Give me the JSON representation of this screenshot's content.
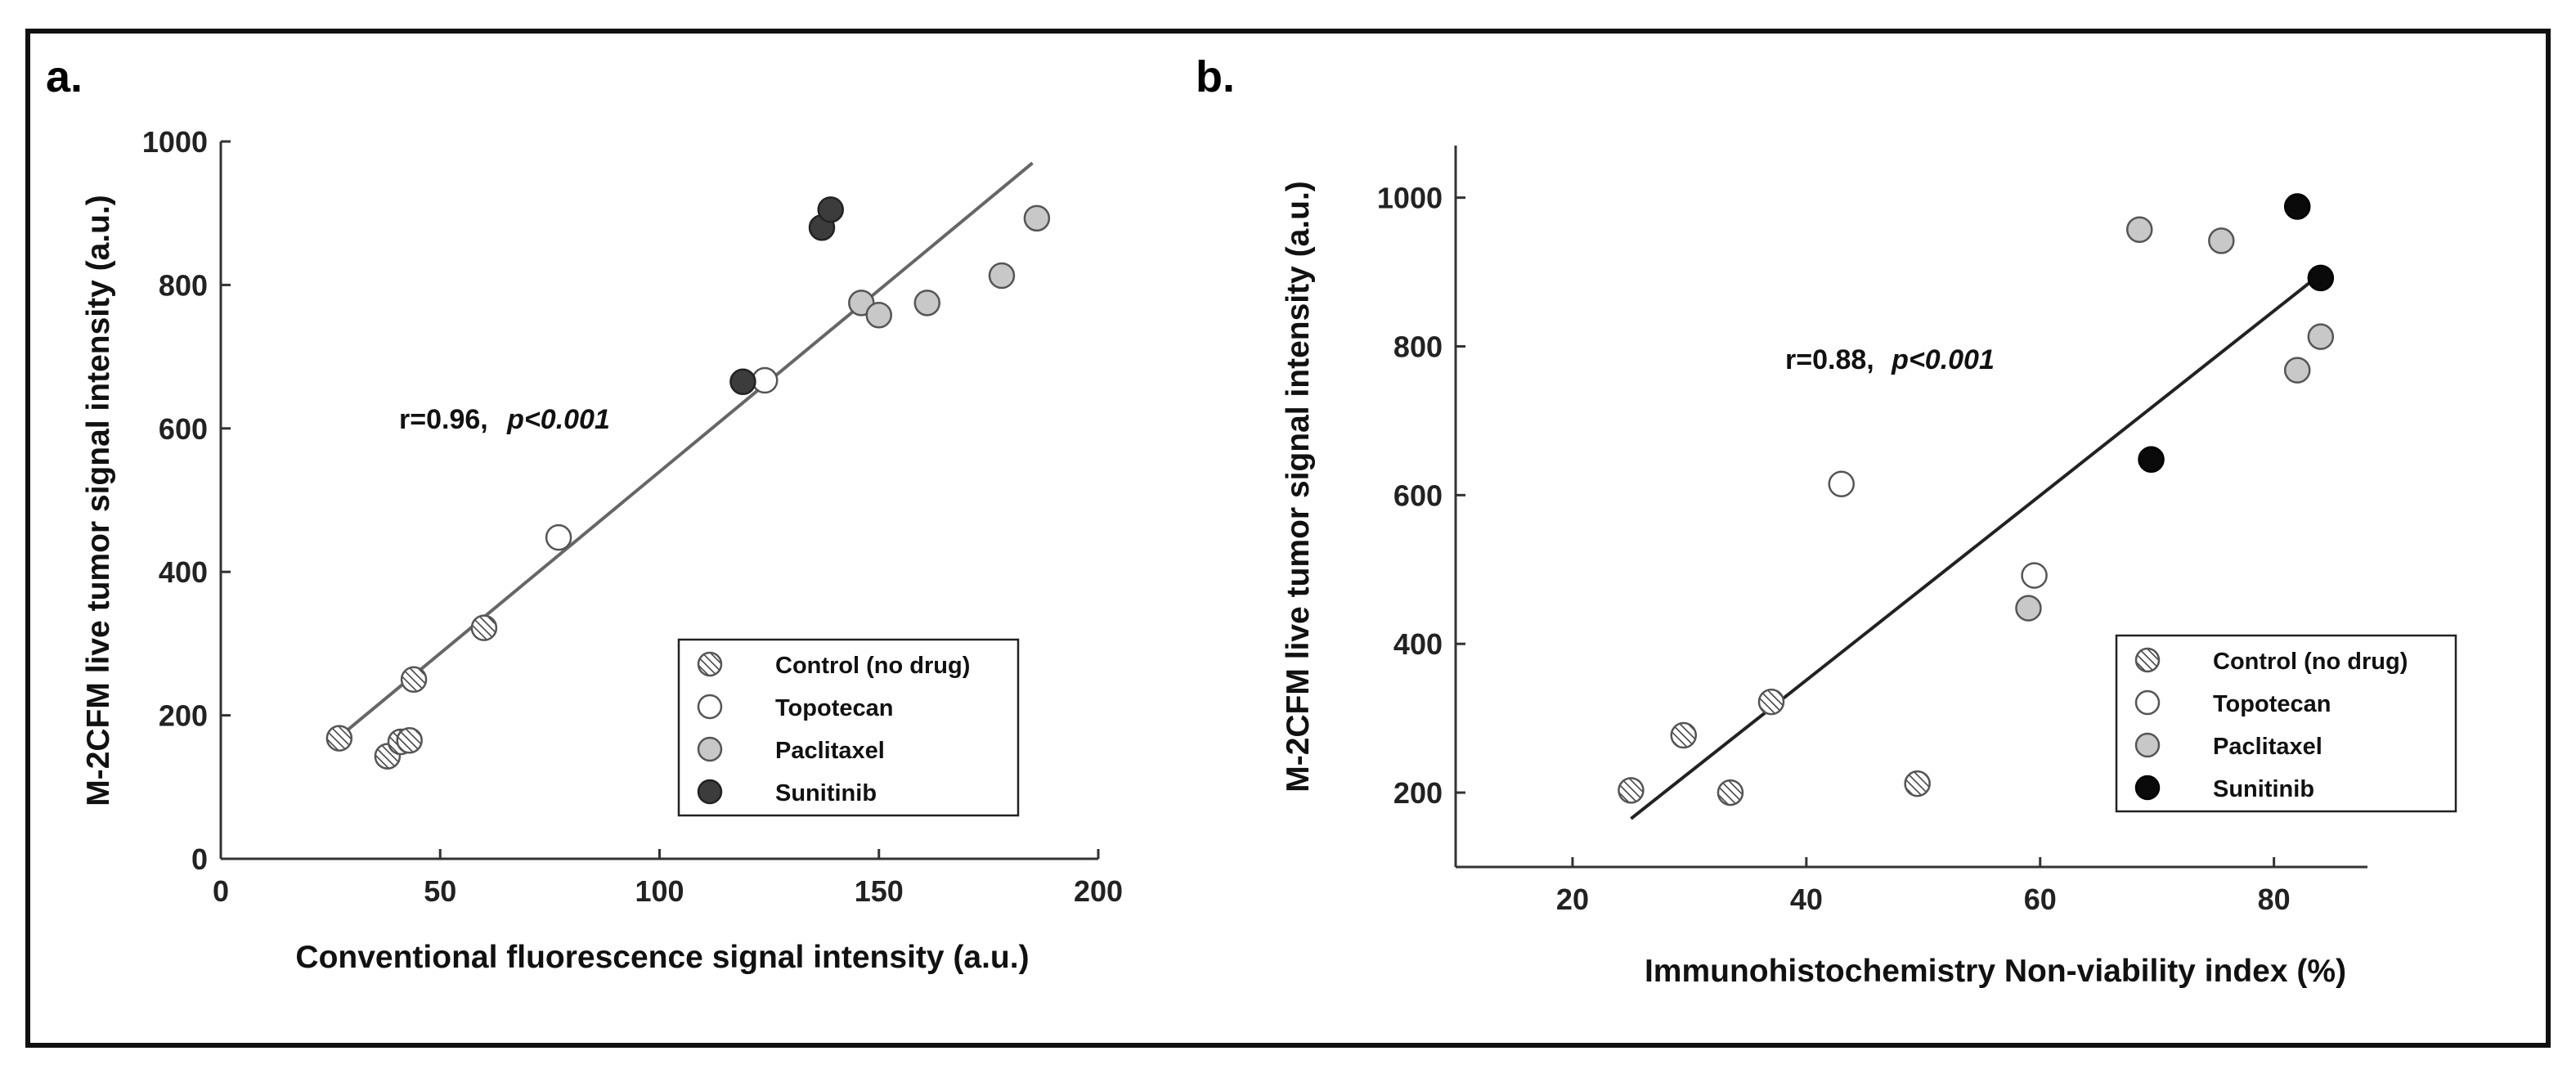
{
  "chart_data": [
    {
      "panel_label": "a.",
      "type": "scatter",
      "xlabel": "Conventional fluorescence signal intensity (a.u.)",
      "ylabel": "M-2CFM live tumor signal intensity (a.u.)",
      "xlim": [
        0,
        200
      ],
      "ylim": [
        0,
        1000
      ],
      "xticks": [
        "0",
        "50",
        "100",
        "150",
        "200"
      ],
      "yticks": [
        "0",
        "200",
        "400",
        "600",
        "800",
        "1000"
      ],
      "annotation": {
        "r": "r=0.96,",
        "p": "p<0.001"
      },
      "fit_line": {
        "x": [
          27,
          185
        ],
        "y": [
          170,
          970
        ]
      },
      "legend": [
        "Control (no drug)",
        "Topotecan",
        "Paclitaxel",
        "Sunitinib"
      ],
      "series": [
        {
          "name": "Control (no drug)",
          "style": "hatched",
          "points": [
            [
              27,
              168
            ],
            [
              38,
              143
            ],
            [
              41,
              163
            ],
            [
              43,
              165
            ],
            [
              44,
              250
            ],
            [
              60,
              322
            ]
          ]
        },
        {
          "name": "Topotecan",
          "style": "open",
          "points": [
            [
              77,
              448
            ],
            [
              124,
              667
            ]
          ]
        },
        {
          "name": "Paclitaxel",
          "style": "gray",
          "points": [
            [
              146,
              775
            ],
            [
              150,
              758
            ],
            [
              161,
              775
            ],
            [
              178,
              813
            ],
            [
              186,
              893
            ]
          ]
        },
        {
          "name": "Sunitinib",
          "style": "dark",
          "points": [
            [
              119,
              665
            ],
            [
              137,
              880
            ],
            [
              139,
              905
            ]
          ]
        }
      ]
    },
    {
      "panel_label": "b.",
      "type": "scatter",
      "xlabel": "Immunohistochemistry Non-viability index (%)",
      "ylabel": "M-2CFM live tumor signal intensity (a.u.)",
      "xlim": [
        10,
        88
      ],
      "ylim": [
        100,
        1070
      ],
      "xticks": [
        "20",
        "40",
        "60",
        "80"
      ],
      "yticks": [
        "200",
        "400",
        "600",
        "800",
        "1000"
      ],
      "annotation": {
        "r": "r=0.88,",
        "p": "p<0.001"
      },
      "fit_line": {
        "x": [
          25,
          83
        ],
        "y": [
          165,
          885
        ]
      },
      "legend": [
        "Control (no drug)",
        "Topotecan",
        "Paclitaxel",
        "Sunitinib"
      ],
      "series": [
        {
          "name": "Control (no drug)",
          "style": "hatched",
          "points": [
            [
              25,
              203
            ],
            [
              29.5,
              277
            ],
            [
              33.5,
              200
            ],
            [
              37,
              322
            ],
            [
              49.5,
              212
            ]
          ]
        },
        {
          "name": "Topotecan",
          "style": "open",
          "points": [
            [
              43,
              615
            ],
            [
              59.5,
              492
            ]
          ]
        },
        {
          "name": "Paclitaxel",
          "style": "gray",
          "points": [
            [
              59,
              448
            ],
            [
              68.5,
              957
            ],
            [
              75.5,
              942
            ],
            [
              82,
              768
            ],
            [
              84,
              813
            ]
          ]
        },
        {
          "name": "Sunitinib",
          "style": "black",
          "points": [
            [
              69.5,
              648
            ],
            [
              82,
              988
            ],
            [
              84,
              892
            ]
          ]
        }
      ]
    }
  ],
  "colors": {
    "border": "#111111",
    "axis": "#333333",
    "fit_line_a": "#666666",
    "fit_line_b": "#222222",
    "gray_marker": "#c8c8c8",
    "dark_marker": "#3c3c3c",
    "black_marker": "#0a0a0a",
    "hatch": "#444444"
  }
}
